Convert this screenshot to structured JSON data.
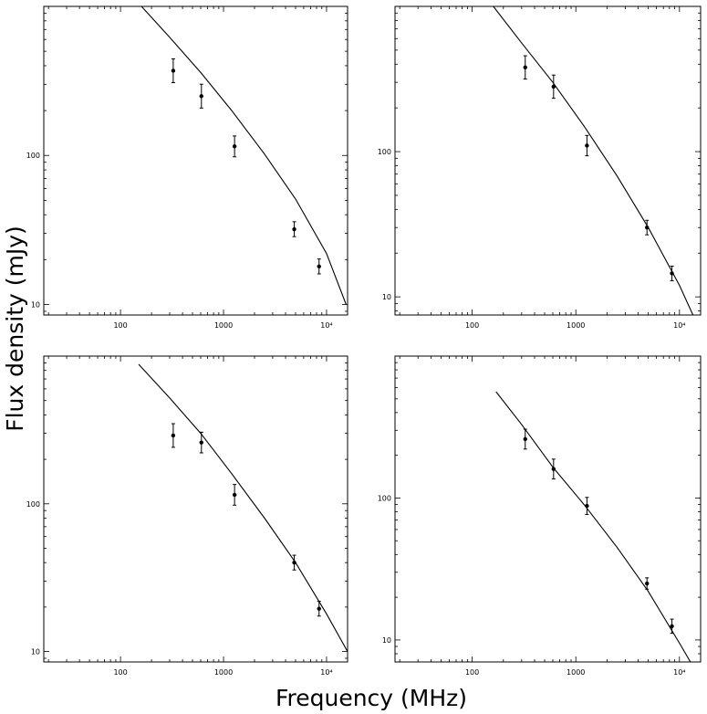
{
  "ylabel": "Flux density (mJy)",
  "xlabel": "Frequency (MHz)",
  "chart_data": [
    {
      "type": "scatter",
      "xscale": "log",
      "yscale": "log",
      "xlim": [
        18,
        16000
      ],
      "ylim": [
        8.5,
        1000
      ],
      "x_tick_labels": [
        {
          "v": 100,
          "t": "100"
        },
        {
          "v": 1000,
          "t": "1000"
        },
        {
          "v": 10000,
          "t": "10⁴"
        }
      ],
      "y_tick_labels": [
        {
          "v": 10,
          "t": "10"
        },
        {
          "v": 100,
          "t": "100"
        }
      ],
      "series": [
        {
          "x": [
            325,
            610,
            1280,
            4860,
            8460
          ],
          "y": [
            370,
            250,
            115,
            32,
            18
          ],
          "err": [
            0.08,
            0.08,
            0.07,
            0.05,
            0.05
          ]
        }
      ],
      "fit": {
        "x": [
          160,
          300,
          600,
          1200,
          2500,
          5000,
          10000,
          15500
        ],
        "y": [
          1000,
          620,
          360,
          200,
          102,
          51,
          22,
          10
        ]
      }
    },
    {
      "type": "scatter",
      "xscale": "log",
      "yscale": "log",
      "xlim": [
        18,
        16000
      ],
      "ylim": [
        7.5,
        1000
      ],
      "x_tick_labels": [
        {
          "v": 100,
          "t": "100"
        },
        {
          "v": 1000,
          "t": "1000"
        },
        {
          "v": 10000,
          "t": "10⁴"
        }
      ],
      "y_tick_labels": [
        {
          "v": 10,
          "t": "10"
        },
        {
          "v": 100,
          "t": "100"
        }
      ],
      "series": [
        {
          "x": [
            325,
            610,
            1280,
            4860,
            8460
          ],
          "y": [
            380,
            280,
            110,
            30,
            14.5
          ],
          "err": [
            0.08,
            0.08,
            0.07,
            0.05,
            0.05
          ]
        }
      ],
      "fit": {
        "x": [
          160,
          300,
          600,
          1200,
          2500,
          5000,
          10000,
          13500
        ],
        "y": [
          1000,
          560,
          300,
          150,
          68,
          30,
          12,
          7.5
        ]
      }
    },
    {
      "type": "scatter",
      "xscale": "log",
      "yscale": "log",
      "xlim": [
        18,
        16000
      ],
      "ylim": [
        8.5,
        1000
      ],
      "x_tick_labels": [
        {
          "v": 100,
          "t": "100"
        },
        {
          "v": 1000,
          "t": "1000"
        },
        {
          "v": 10000,
          "t": "10⁴"
        }
      ],
      "y_tick_labels": [
        {
          "v": 10,
          "t": "10"
        },
        {
          "v": 100,
          "t": "100"
        }
      ],
      "series": [
        {
          "x": [
            325,
            610,
            1280,
            4860,
            8460
          ],
          "y": [
            290,
            260,
            115,
            40,
            19.5
          ],
          "err": [
            0.08,
            0.07,
            0.07,
            0.05,
            0.05
          ]
        }
      ],
      "fit": {
        "x": [
          150,
          300,
          600,
          1200,
          2500,
          5000,
          10000,
          16000
        ],
        "y": [
          880,
          520,
          300,
          160,
          80,
          40,
          18,
          10
        ]
      }
    },
    {
      "type": "scatter",
      "xscale": "log",
      "yscale": "log",
      "xlim": [
        18,
        16000
      ],
      "ylim": [
        7,
        1000
      ],
      "x_tick_labels": [
        {
          "v": 100,
          "t": "100"
        },
        {
          "v": 1000,
          "t": "1000"
        },
        {
          "v": 10000,
          "t": "10⁴"
        }
      ],
      "y_tick_labels": [
        {
          "v": 10,
          "t": "10"
        },
        {
          "v": 100,
          "t": "100"
        }
      ],
      "series": [
        {
          "x": [
            325,
            610,
            1280,
            4860,
            8460
          ],
          "y": [
            260,
            160,
            88,
            25,
            12.5
          ],
          "err": [
            0.07,
            0.07,
            0.06,
            0.04,
            0.05
          ]
        }
      ],
      "fit": {
        "x": [
          170,
          300,
          600,
          1200,
          2500,
          5000,
          10000,
          15500
        ],
        "y": [
          560,
          330,
          165,
          90,
          45,
          22,
          9.5,
          5.5
        ]
      }
    }
  ]
}
